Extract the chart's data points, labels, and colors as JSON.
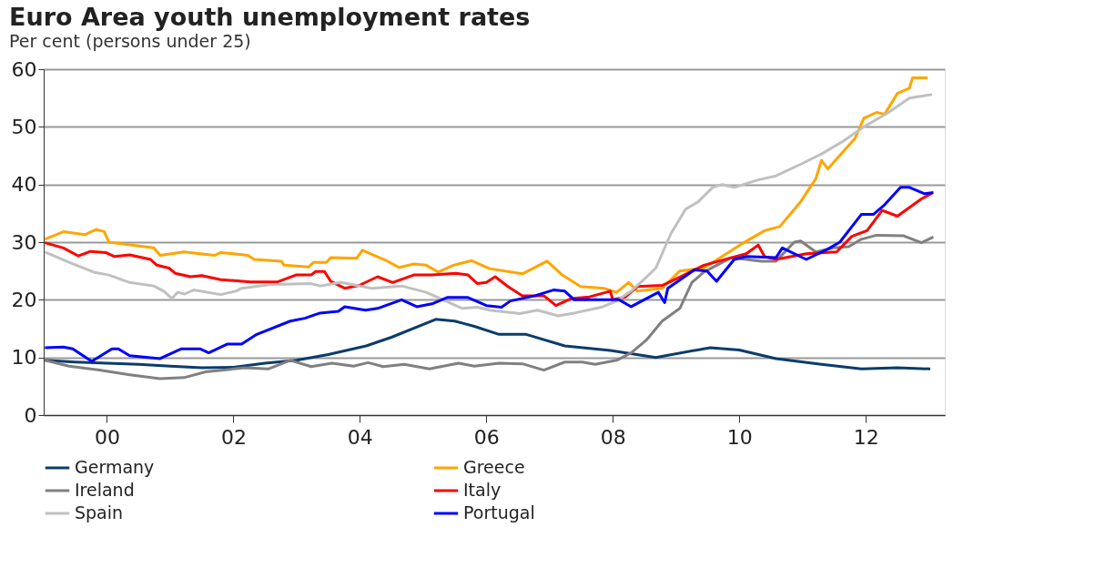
{
  "chart_data": {
    "type": "line",
    "title": "Euro Area youth unemployment rates",
    "subtitle": "Per cent (persons under 25)",
    "xlim": [
      1999,
      2013.25
    ],
    "xticks": [
      {
        "value": 2000,
        "label": "00"
      },
      {
        "value": 2002,
        "label": "02"
      },
      {
        "value": 2004,
        "label": "04"
      },
      {
        "value": 2006,
        "label": "06"
      },
      {
        "value": 2008,
        "label": "08"
      },
      {
        "value": 2010,
        "label": "10"
      },
      {
        "value": 2012,
        "label": "12"
      }
    ],
    "ylim": [
      0,
      60
    ],
    "yticks": [
      0,
      10,
      20,
      30,
      40,
      50,
      60
    ],
    "grid": "y",
    "legend": "bottom",
    "marker": "none",
    "line_style": "solid",
    "series": [
      {
        "name": "Germany",
        "color": "#0b3c6b",
        "x": [
          1999.02,
          1999.5,
          2000.0,
          2000.5,
          2001.0,
          2001.5,
          2002.0,
          2002.5,
          2003.0,
          2003.5,
          2004.1,
          2004.5,
          2005.2,
          2005.5,
          2005.81,
          2006.2,
          2006.63,
          2007.24,
          2007.96,
          2008.68,
          2009.54,
          2010.0,
          2010.58,
          2011.3,
          2011.93,
          2012.5,
          2013.02
        ],
        "values": [
          9.5,
          9.2,
          9.0,
          8.8,
          8.5,
          8.2,
          8.3,
          9.0,
          9.5,
          10.5,
          12.0,
          13.5,
          16.6,
          16.3,
          15.4,
          14.0,
          14.0,
          12.0,
          11.2,
          10.0,
          11.7,
          11.3,
          9.8,
          8.8,
          8.0,
          8.2,
          8.0
        ]
      },
      {
        "name": "Greece",
        "color": "#ffa500",
        "x": [
          1999.02,
          1999.31,
          1999.65,
          1999.83,
          1999.96,
          2000.03,
          2000.74,
          2000.84,
          2001.22,
          2001.7,
          2001.8,
          2002.23,
          2002.33,
          2002.76,
          2002.8,
          2003.19,
          2003.27,
          2003.47,
          2003.54,
          2003.95,
          2004.04,
          2004.42,
          2004.62,
          2004.85,
          2005.05,
          2005.24,
          2005.48,
          2005.77,
          2006.05,
          2006.57,
          2006.96,
          2007.2,
          2007.49,
          2007.86,
          2008.06,
          2008.25,
          2008.39,
          2008.78,
          2009.06,
          2009.44,
          2010.01,
          2010.4,
          2010.64,
          2010.97,
          2011.21,
          2011.3,
          2011.4,
          2011.83,
          2011.97,
          2012.17,
          2012.3,
          2012.5,
          2012.69,
          2012.74,
          2012.98
        ],
        "values": [
          30.5,
          31.8,
          31.3,
          32.2,
          31.8,
          30.0,
          29.0,
          27.7,
          28.3,
          27.7,
          28.2,
          27.7,
          27.0,
          26.7,
          26.0,
          25.7,
          26.5,
          26.5,
          27.3,
          27.2,
          28.6,
          26.8,
          25.6,
          26.2,
          26.0,
          24.8,
          26.0,
          26.8,
          25.4,
          24.5,
          26.7,
          24.3,
          22.3,
          22.0,
          21.3,
          23.0,
          21.5,
          22.0,
          25.0,
          25.5,
          29.5,
          32.0,
          32.7,
          37.0,
          41.0,
          44.2,
          42.7,
          48.0,
          51.5,
          52.5,
          52.2,
          55.8,
          56.7,
          58.5,
          58.5
        ]
      },
      {
        "name": "Ireland",
        "color": "#808080",
        "x": [
          1999.02,
          1999.4,
          1999.88,
          2000.36,
          2000.84,
          2001.22,
          2001.56,
          2002.18,
          2002.55,
          2002.9,
          2003.23,
          2003.56,
          2003.9,
          2004.13,
          2004.37,
          2004.7,
          2005.1,
          2005.56,
          2005.81,
          2006.2,
          2006.57,
          2006.91,
          2007.24,
          2007.52,
          2007.72,
          2008.06,
          2008.29,
          2008.53,
          2008.78,
          2009.06,
          2009.25,
          2009.44,
          2009.87,
          2010.35,
          2010.58,
          2010.87,
          2010.97,
          2011.21,
          2011.49,
          2011.73,
          2011.93,
          2012.17,
          2012.6,
          2012.88,
          2013.07
        ],
        "values": [
          9.5,
          8.5,
          7.8,
          7.0,
          6.3,
          6.5,
          7.5,
          8.2,
          8.0,
          9.5,
          8.4,
          9.0,
          8.5,
          9.1,
          8.4,
          8.8,
          8.0,
          9.0,
          8.5,
          9.0,
          8.9,
          7.8,
          9.2,
          9.2,
          8.8,
          9.5,
          10.8,
          13.0,
          16.3,
          18.5,
          23.0,
          24.8,
          27.3,
          26.7,
          26.7,
          30.0,
          30.2,
          28.3,
          29.0,
          29.2,
          30.5,
          31.2,
          31.1,
          29.9,
          30.9
        ]
      },
      {
        "name": "Italy",
        "color": "#ff0000",
        "x": [
          1999.02,
          1999.31,
          1999.55,
          1999.74,
          1999.98,
          2000.12,
          2000.36,
          2000.69,
          2000.79,
          2000.98,
          2001.08,
          2001.32,
          2001.5,
          2001.8,
          2002.27,
          2002.7,
          2002.99,
          2003.23,
          2003.3,
          2003.44,
          2003.54,
          2003.76,
          2003.99,
          2004.28,
          2004.52,
          2004.85,
          2005.14,
          2005.52,
          2005.71,
          2005.86,
          2006.0,
          2006.14,
          2006.34,
          2006.57,
          2006.91,
          2007.1,
          2007.34,
          2007.63,
          2007.96,
          2008.0,
          2008.2,
          2008.39,
          2008.78,
          2008.92,
          2009.44,
          2010.11,
          2010.3,
          2010.4,
          2010.58,
          2011.06,
          2011.54,
          2011.78,
          2012.02,
          2012.26,
          2012.5,
          2012.69,
          2012.88,
          2013.05
        ],
        "values": [
          29.9,
          29.0,
          27.6,
          28.4,
          28.2,
          27.5,
          27.8,
          27.0,
          26.0,
          25.5,
          24.6,
          24.0,
          24.2,
          23.5,
          23.1,
          23.1,
          24.3,
          24.3,
          24.9,
          24.9,
          23.2,
          22.0,
          22.5,
          24.0,
          23.0,
          24.3,
          24.3,
          24.6,
          24.3,
          22.8,
          23.0,
          24.0,
          22.3,
          20.7,
          20.7,
          19.0,
          20.2,
          20.5,
          21.5,
          20.0,
          20.5,
          22.3,
          22.5,
          23.2,
          26.0,
          28.0,
          29.5,
          27.5,
          27.0,
          28.0,
          28.3,
          31.0,
          32.0,
          35.5,
          34.5,
          36.0,
          37.5,
          38.5
        ]
      },
      {
        "name": "Spain",
        "color": "#c0c0c0",
        "x": [
          1999.02,
          1999.4,
          1999.79,
          2000.03,
          2000.36,
          2000.74,
          2000.9,
          2001.03,
          2001.12,
          2001.23,
          2001.37,
          2001.8,
          2002.04,
          2002.13,
          2002.56,
          2003.23,
          2003.37,
          2003.7,
          2004.19,
          2004.66,
          2005.05,
          2005.62,
          2005.86,
          2006.05,
          2006.53,
          2006.81,
          2007.14,
          2007.39,
          2007.82,
          2008.06,
          2008.29,
          2008.49,
          2008.68,
          2008.92,
          2009.15,
          2009.35,
          2009.58,
          2009.73,
          2009.92,
          2010.3,
          2010.58,
          2010.97,
          2011.3,
          2011.64,
          2011.97,
          2012.36,
          2012.69,
          2013.05
        ],
        "values": [
          28.3,
          26.5,
          24.8,
          24.3,
          23.0,
          22.4,
          21.5,
          20.2,
          21.3,
          21.0,
          21.7,
          20.9,
          21.5,
          22.0,
          22.6,
          22.8,
          22.4,
          23.0,
          22.0,
          22.4,
          21.3,
          18.5,
          18.7,
          18.2,
          17.6,
          18.2,
          17.2,
          17.7,
          18.7,
          19.8,
          21.5,
          23.5,
          25.5,
          31.5,
          35.7,
          37.0,
          39.5,
          40.0,
          39.5,
          40.8,
          41.5,
          43.5,
          45.3,
          47.5,
          50.0,
          52.5,
          55.0,
          55.6
        ]
      },
      {
        "name": "Portugal",
        "color": "#0000ff",
        "x": [
          1999.02,
          1999.31,
          1999.46,
          1999.76,
          2000.08,
          2000.18,
          2000.36,
          2000.84,
          2001.18,
          2001.47,
          2001.61,
          2001.9,
          2002.13,
          2002.37,
          2002.9,
          2003.13,
          2003.37,
          2003.66,
          2003.76,
          2004.09,
          2004.28,
          2004.66,
          2004.9,
          2005.14,
          2005.38,
          2005.71,
          2006.0,
          2006.24,
          2006.38,
          2006.77,
          2007.06,
          2007.24,
          2007.39,
          2008.1,
          2008.29,
          2008.72,
          2008.82,
          2008.87,
          2009.29,
          2009.49,
          2009.64,
          2009.92,
          2010.11,
          2010.58,
          2010.68,
          2011.06,
          2011.4,
          2011.59,
          2011.93,
          2012.12,
          2012.3,
          2012.55,
          2012.69,
          2012.93,
          2013.07
        ],
        "values": [
          11.7,
          11.8,
          11.5,
          9.3,
          11.5,
          11.5,
          10.3,
          9.8,
          11.5,
          11.5,
          10.8,
          12.3,
          12.3,
          14.0,
          16.3,
          16.8,
          17.7,
          18.0,
          18.8,
          18.2,
          18.5,
          20.0,
          18.8,
          19.3,
          20.4,
          20.4,
          19.0,
          18.7,
          19.8,
          20.7,
          21.7,
          21.5,
          20.0,
          20.0,
          18.8,
          21.3,
          19.5,
          22.0,
          25.2,
          25.0,
          23.2,
          27.0,
          27.5,
          27.3,
          29.0,
          27.0,
          28.8,
          30.0,
          34.8,
          34.8,
          36.5,
          39.5,
          39.5,
          38.4,
          38.6
        ]
      }
    ]
  }
}
